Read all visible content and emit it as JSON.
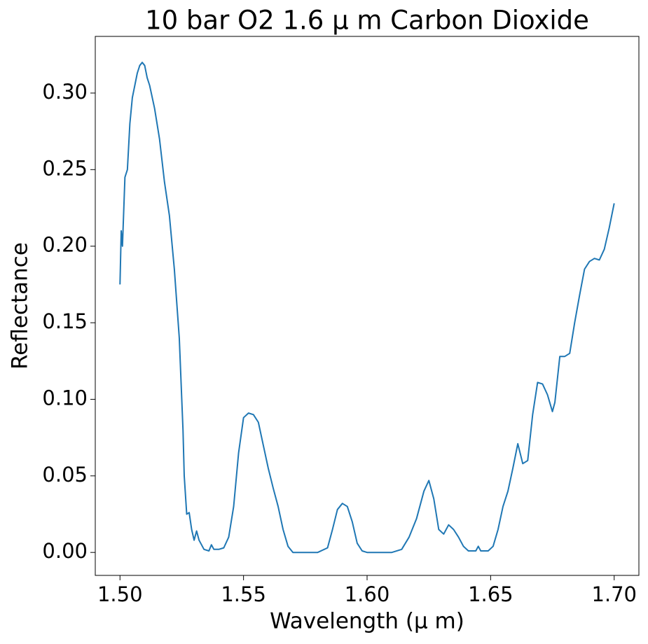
{
  "chart_data": {
    "type": "line",
    "title": "10 bar O2 1.6 μ m Carbon Dioxide",
    "x_label": "Wavelength (μ m)",
    "y_label": "Reflectance",
    "color": "#1f77b4",
    "x": [
      1.5,
      1.5005,
      1.501,
      1.502,
      1.503,
      1.504,
      1.505,
      1.506,
      1.507,
      1.508,
      1.509,
      1.51,
      1.511,
      1.512,
      1.514,
      1.516,
      1.518,
      1.52,
      1.522,
      1.524,
      1.5255,
      1.526,
      1.527,
      1.528,
      1.529,
      1.53,
      1.531,
      1.532,
      1.534,
      1.536,
      1.537,
      1.538,
      1.54,
      1.542,
      1.544,
      1.546,
      1.548,
      1.55,
      1.552,
      1.554,
      1.556,
      1.558,
      1.56,
      1.562,
      1.564,
      1.566,
      1.568,
      1.57,
      1.575,
      1.58,
      1.584,
      1.586,
      1.588,
      1.59,
      1.592,
      1.594,
      1.596,
      1.598,
      1.6,
      1.605,
      1.61,
      1.614,
      1.617,
      1.62,
      1.623,
      1.625,
      1.627,
      1.629,
      1.631,
      1.633,
      1.635,
      1.637,
      1.639,
      1.641,
      1.644,
      1.645,
      1.646,
      1.649,
      1.651,
      1.653,
      1.655,
      1.657,
      1.659,
      1.661,
      1.663,
      1.665,
      1.667,
      1.669,
      1.671,
      1.673,
      1.675,
      1.676,
      1.678,
      1.68,
      1.682,
      1.684,
      1.686,
      1.688,
      1.69,
      1.692,
      1.694,
      1.696,
      1.698,
      1.7
    ],
    "values": [
      0.175,
      0.21,
      0.2,
      0.245,
      0.25,
      0.28,
      0.297,
      0.305,
      0.313,
      0.318,
      0.32,
      0.318,
      0.31,
      0.305,
      0.29,
      0.27,
      0.242,
      0.22,
      0.185,
      0.14,
      0.08,
      0.05,
      0.025,
      0.026,
      0.015,
      0.008,
      0.014,
      0.008,
      0.002,
      0.001,
      0.005,
      0.002,
      0.002,
      0.003,
      0.01,
      0.03,
      0.065,
      0.088,
      0.091,
      0.09,
      0.085,
      0.07,
      0.055,
      0.042,
      0.03,
      0.015,
      0.004,
      0.0,
      0.0,
      0.0,
      0.003,
      0.015,
      0.028,
      0.032,
      0.03,
      0.02,
      0.006,
      0.001,
      0.0,
      0.0,
      0.0,
      0.002,
      0.01,
      0.022,
      0.04,
      0.047,
      0.035,
      0.015,
      0.012,
      0.018,
      0.015,
      0.01,
      0.004,
      0.001,
      0.001,
      0.004,
      0.001,
      0.001,
      0.004,
      0.015,
      0.03,
      0.04,
      0.055,
      0.071,
      0.058,
      0.06,
      0.09,
      0.111,
      0.11,
      0.103,
      0.092,
      0.098,
      0.128,
      0.128,
      0.13,
      0.15,
      0.168,
      0.185,
      0.19,
      0.192,
      0.191,
      0.198,
      0.212,
      0.228
    ],
    "xlim": [
      1.49,
      1.71
    ],
    "ylim": [
      -0.015,
      0.337
    ],
    "xticks": [
      {
        "value": 1.5,
        "label": "1.50"
      },
      {
        "value": 1.55,
        "label": "1.55"
      },
      {
        "value": 1.6,
        "label": "1.60"
      },
      {
        "value": 1.65,
        "label": "1.65"
      },
      {
        "value": 1.7,
        "label": "1.70"
      }
    ],
    "yticks": [
      {
        "value": 0,
        "label": "0.00"
      },
      {
        "value": 0.05,
        "label": "0.05"
      },
      {
        "value": 0.1,
        "label": "0.10"
      },
      {
        "value": 0.15,
        "label": "0.15"
      },
      {
        "value": 0.2,
        "label": "0.20"
      },
      {
        "value": 0.25,
        "label": "0.25"
      },
      {
        "value": 0.3,
        "label": "0.30"
      }
    ]
  }
}
